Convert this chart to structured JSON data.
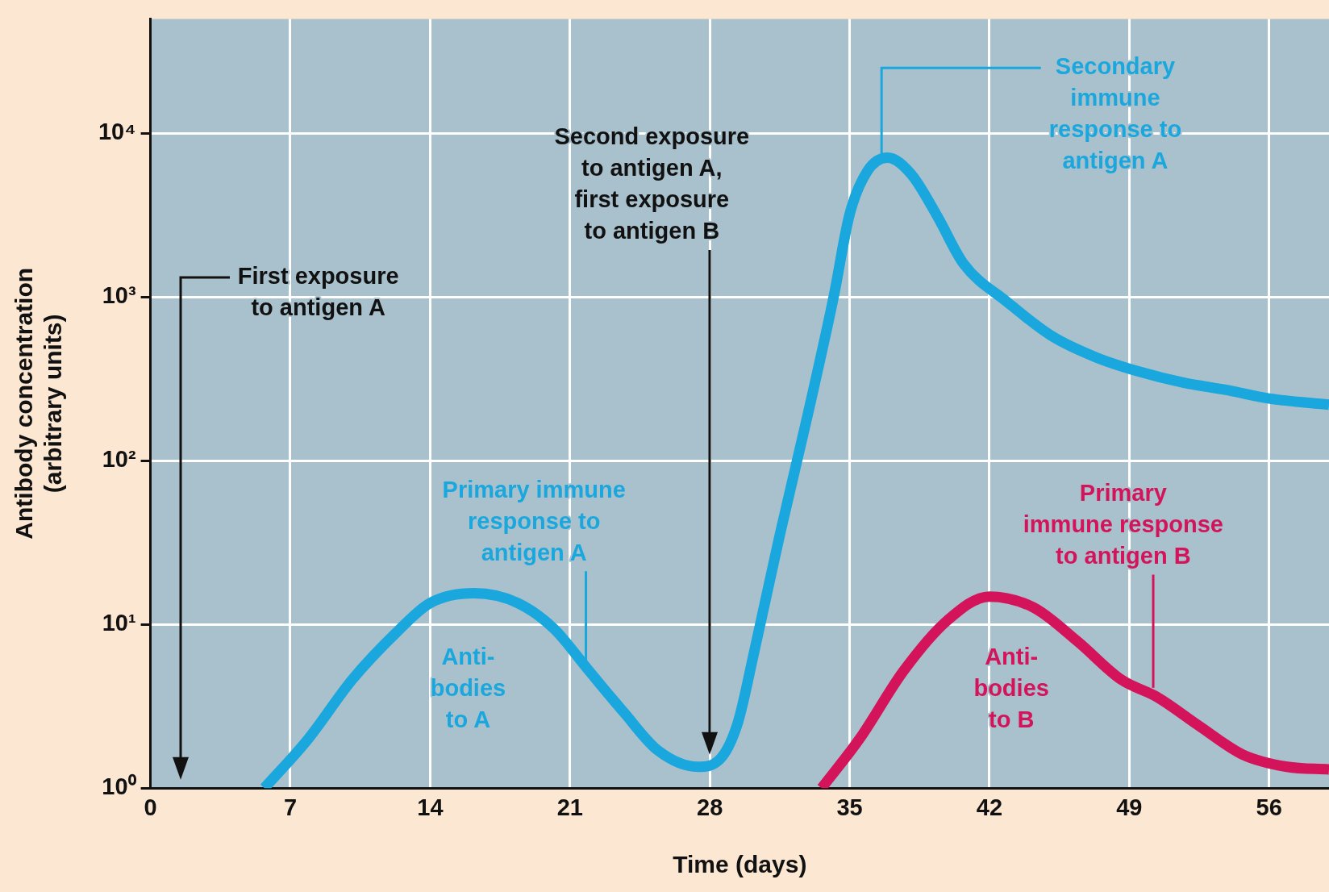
{
  "chart_data": {
    "type": "line",
    "xlabel": "Time (days)",
    "ylabel": "Antibody concentration\n(arbitrary units)",
    "log": "y",
    "grid": true,
    "legend": false,
    "marker": "none",
    "line_style": "solid",
    "xlim": [
      0,
      59
    ],
    "xticks": [
      0,
      7,
      14,
      21,
      28,
      35,
      42,
      49,
      56
    ],
    "ylim": [
      1,
      50000
    ],
    "yticks": [
      {
        "value": 1,
        "label": "10⁰"
      },
      {
        "value": 10,
        "label": "10¹"
      },
      {
        "value": 100,
        "label": "10²"
      },
      {
        "value": 1000,
        "label": "10³"
      },
      {
        "value": 10000,
        "label": "10⁴"
      }
    ],
    "series": [
      {
        "name": "Anti-\nbodies\nto A",
        "color": "#1aa7de",
        "x": [
          5.7,
          7.9,
          10.1,
          12.3,
          14,
          16.2,
          18.4,
          20.2,
          21.9,
          23.7,
          25.4,
          27.4,
          28.5,
          29.4,
          30.2,
          31.5,
          32.9,
          34.2,
          35,
          35.9,
          36.9,
          38.1,
          39.4,
          40.7,
          42.9,
          45.1,
          47.3,
          49.5,
          51.7,
          53.9,
          56,
          59
        ],
        "values": [
          1,
          2,
          4.6,
          8.9,
          13.5,
          15.5,
          13.5,
          9.4,
          5.3,
          2.9,
          1.7,
          1.35,
          1.5,
          2.5,
          6.6,
          35,
          190,
          1000,
          3200,
          5900,
          7100,
          5600,
          3100,
          1600,
          930,
          580,
          430,
          350,
          300,
          270,
          240,
          220
        ]
      },
      {
        "name": "Anti-\nbodies\nto B",
        "color": "#d4145a",
        "x": [
          33.6,
          35.5,
          37.7,
          39.9,
          42,
          44.2,
          46.4,
          48.6,
          50.4,
          52.5,
          54.7,
          56.9,
          59
        ],
        "values": [
          1,
          2,
          5.2,
          10.6,
          14.8,
          12.7,
          7.9,
          4.6,
          3.6,
          2.4,
          1.6,
          1.35,
          1.3
        ]
      }
    ],
    "ref_lines": [
      {
        "axis": "x",
        "value": 1.5,
        "label": "First exposure\nto antigen A",
        "color": "#111111"
      },
      {
        "axis": "x",
        "value": 28,
        "label": "Second exposure\nto antigen A,\nfirst exposure\nto antigen B",
        "color": "#111111"
      }
    ],
    "annotations": [
      {
        "text": "Primary immune\nresponse to\nantigen A",
        "x": 21.8,
        "y": 5.5
      },
      {
        "text": "Secondary\nimmune\nresponse to\nantigen A",
        "x": 36.6,
        "y": 7500
      },
      {
        "text": "Primary\nimmune response\nto antigen B",
        "x": 50.2,
        "y": 4.1
      }
    ]
  }
}
